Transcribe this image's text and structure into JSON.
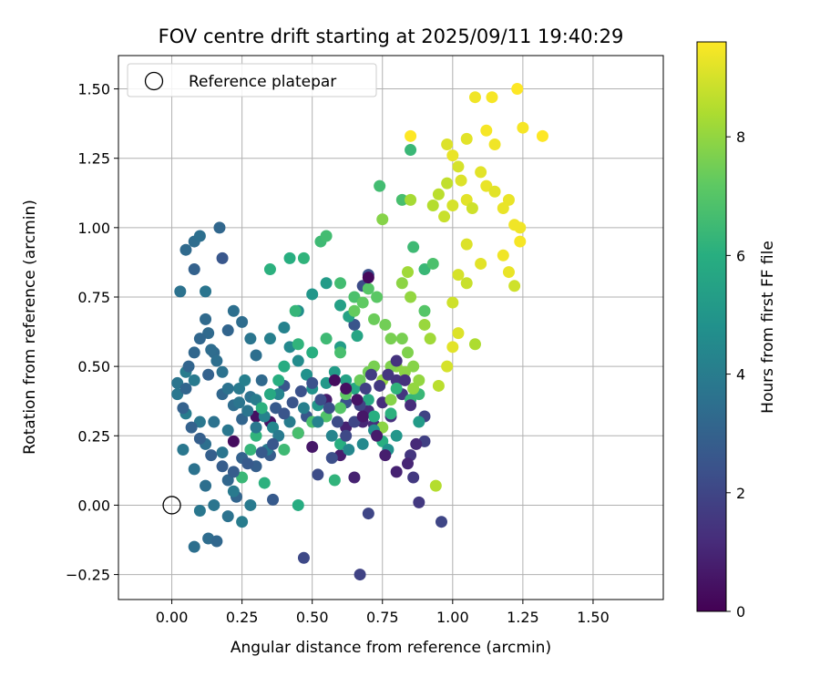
{
  "chart_data": {
    "type": "scatter",
    "title": "FOV centre drift starting at 2025/09/11 19:40:29",
    "xlabel": "Angular distance from reference (arcmin)",
    "ylabel": "Rotation from reference (arcmin)",
    "xlim": [
      -0.19,
      1.75
    ],
    "ylim": [
      -0.34,
      1.62
    ],
    "x_ticks": [
      0.0,
      0.25,
      0.5,
      0.75,
      1.0,
      1.25,
      1.5
    ],
    "x_tick_labels": [
      "0.00",
      "0.25",
      "0.50",
      "0.75",
      "1.00",
      "1.25",
      "1.50"
    ],
    "y_ticks": [
      -0.25,
      0.0,
      0.25,
      0.5,
      0.75,
      1.0,
      1.25,
      1.5
    ],
    "y_tick_labels": [
      "−0.25",
      "0.00",
      "0.25",
      "0.50",
      "0.75",
      "1.00",
      "1.25",
      "1.50"
    ],
    "grid": true,
    "legend": {
      "location": "upper-left",
      "entries": [
        "Reference platepar"
      ]
    },
    "reference": {
      "x": 0.0,
      "y": 0.0
    },
    "colorbar": {
      "label": "Hours from first FF file",
      "range": [
        0,
        9.6
      ],
      "ticks": [
        0,
        2,
        4,
        6,
        8
      ],
      "tick_labels": [
        "0",
        "2",
        "4",
        "6",
        "8"
      ],
      "colormap": "viridis"
    },
    "points": [
      [
        0.22,
        0.23,
        0.3
      ],
      [
        0.3,
        0.32,
        0.4
      ],
      [
        0.35,
        0.3,
        0.5
      ],
      [
        0.45,
        0.26,
        0.6
      ],
      [
        0.5,
        0.21,
        0.6
      ],
      [
        0.55,
        0.38,
        0.7
      ],
      [
        0.6,
        0.18,
        0.8
      ],
      [
        0.62,
        0.28,
        0.9
      ],
      [
        0.65,
        0.1,
        0.9
      ],
      [
        0.68,
        0.3,
        1.0
      ],
      [
        0.7,
        0.34,
        1.1
      ],
      [
        0.72,
        0.29,
        1.2
      ],
      [
        0.75,
        0.37,
        1.2
      ],
      [
        0.78,
        0.32,
        1.3
      ],
      [
        0.8,
        0.45,
        1.4
      ],
      [
        0.82,
        0.4,
        1.5
      ],
      [
        0.85,
        0.18,
        1.5
      ],
      [
        0.86,
        0.1,
        1.6
      ],
      [
        0.88,
        0.01,
        1.6
      ],
      [
        0.9,
        0.23,
        1.8
      ],
      [
        0.9,
        0.32,
        1.9
      ],
      [
        0.96,
        -0.06,
        2.0
      ],
      [
        0.7,
        -0.03,
        2.0
      ],
      [
        0.67,
        -0.25,
        1.9
      ],
      [
        0.47,
        -0.19,
        2.1
      ],
      [
        0.52,
        0.11,
        2.2
      ],
      [
        0.57,
        0.17,
        2.3
      ],
      [
        0.62,
        0.37,
        2.4
      ],
      [
        0.68,
        0.79,
        2.2
      ],
      [
        0.7,
        0.83,
        2.4
      ],
      [
        0.65,
        0.65,
        2.5
      ],
      [
        0.48,
        0.32,
        2.6
      ],
      [
        0.4,
        0.43,
        2.6
      ],
      [
        0.37,
        0.35,
        2.7
      ],
      [
        0.35,
        0.18,
        2.8
      ],
      [
        0.3,
        0.14,
        2.9
      ],
      [
        0.36,
        0.02,
        2.7
      ],
      [
        0.25,
        0.17,
        3.0
      ],
      [
        0.23,
        0.03,
        3.1
      ],
      [
        0.2,
        0.09,
        3.2
      ],
      [
        0.18,
        0.89,
        2.6
      ],
      [
        0.17,
        1.0,
        3.2
      ],
      [
        0.08,
        0.85,
        3.0
      ],
      [
        0.05,
        0.92,
        3.3
      ],
      [
        0.08,
        0.95,
        3.4
      ],
      [
        0.1,
        0.97,
        3.5
      ],
      [
        0.03,
        0.77,
        3.6
      ],
      [
        0.12,
        0.77,
        3.7
      ],
      [
        0.2,
        0.63,
        3.1
      ],
      [
        0.22,
        0.7,
        3.5
      ],
      [
        0.25,
        0.66,
        3.4
      ],
      [
        0.15,
        0.55,
        3.3
      ],
      [
        0.13,
        0.47,
        3.0
      ],
      [
        0.18,
        0.4,
        3.2
      ],
      [
        0.22,
        0.36,
        3.4
      ],
      [
        0.25,
        0.31,
        3.1
      ],
      [
        0.28,
        0.39,
        3.6
      ],
      [
        0.32,
        0.45,
        3.3
      ],
      [
        0.3,
        0.54,
        3.5
      ],
      [
        0.28,
        0.6,
        3.7
      ],
      [
        0.15,
        0.3,
        3.6
      ],
      [
        0.12,
        0.22,
        3.5
      ],
      [
        0.1,
        0.3,
        3.8
      ],
      [
        0.08,
        0.45,
        3.9
      ],
      [
        0.05,
        0.48,
        4.0
      ],
      [
        0.02,
        0.44,
        3.7
      ],
      [
        0.02,
        0.4,
        3.8
      ],
      [
        0.05,
        0.33,
        4.0
      ],
      [
        0.04,
        0.2,
        3.8
      ],
      [
        0.08,
        0.13,
        3.6
      ],
      [
        0.12,
        0.07,
        3.5
      ],
      [
        0.15,
        0.0,
        3.7
      ],
      [
        0.1,
        -0.02,
        3.8
      ],
      [
        0.13,
        -0.12,
        3.4
      ],
      [
        0.08,
        -0.15,
        3.5
      ],
      [
        0.16,
        -0.13,
        3.2
      ],
      [
        0.2,
        -0.04,
        3.6
      ],
      [
        0.22,
        0.05,
        3.9
      ],
      [
        0.25,
        -0.06,
        4.0
      ],
      [
        0.28,
        0.0,
        3.9
      ],
      [
        0.18,
        0.19,
        3.7
      ],
      [
        0.2,
        0.27,
        3.8
      ],
      [
        0.24,
        0.42,
        3.9
      ],
      [
        0.26,
        0.45,
        4.1
      ],
      [
        0.3,
        0.38,
        4.0
      ],
      [
        0.33,
        0.32,
        4.2
      ],
      [
        0.36,
        0.28,
        4.4
      ],
      [
        0.38,
        0.4,
        4.3
      ],
      [
        0.35,
        0.6,
        4.1
      ],
      [
        0.4,
        0.64,
        4.2
      ],
      [
        0.42,
        0.57,
        4.5
      ],
      [
        0.45,
        0.52,
        4.6
      ],
      [
        0.48,
        0.47,
        4.8
      ],
      [
        0.5,
        0.42,
        4.9
      ],
      [
        0.52,
        0.36,
        5.0
      ],
      [
        0.55,
        0.44,
        5.1
      ],
      [
        0.45,
        0.7,
        4.7
      ],
      [
        0.5,
        0.76,
        5.0
      ],
      [
        0.55,
        0.8,
        5.2
      ],
      [
        0.6,
        0.72,
        5.4
      ],
      [
        0.63,
        0.68,
        5.5
      ],
      [
        0.66,
        0.61,
        5.6
      ],
      [
        0.6,
        0.57,
        5.3
      ],
      [
        0.58,
        0.48,
        5.2
      ],
      [
        0.62,
        0.45,
        5.5
      ],
      [
        0.65,
        0.42,
        5.7
      ],
      [
        0.7,
        0.38,
        5.8
      ],
      [
        0.72,
        0.32,
        6.0
      ],
      [
        0.75,
        0.23,
        6.0
      ],
      [
        0.78,
        0.33,
        6.1
      ],
      [
        0.8,
        0.42,
        6.2
      ],
      [
        0.85,
        0.38,
        6.3
      ],
      [
        0.88,
        0.4,
        6.4
      ],
      [
        0.6,
        0.22,
        6.0
      ],
      [
        0.58,
        0.09,
        6.2
      ],
      [
        0.45,
        0.0,
        5.9
      ],
      [
        0.44,
        0.7,
        6.3
      ],
      [
        0.42,
        0.89,
        6.0
      ],
      [
        0.47,
        0.89,
        6.2
      ],
      [
        0.53,
        0.95,
        6.5
      ],
      [
        0.55,
        0.97,
        6.6
      ],
      [
        0.35,
        0.85,
        6.1
      ],
      [
        0.6,
        0.8,
        6.6
      ],
      [
        0.65,
        0.75,
        6.8
      ],
      [
        0.7,
        0.78,
        7.0
      ],
      [
        0.73,
        0.75,
        7.1
      ],
      [
        0.68,
        0.73,
        7.2
      ],
      [
        0.65,
        0.7,
        7.3
      ],
      [
        0.72,
        0.67,
        7.4
      ],
      [
        0.76,
        0.65,
        7.5
      ],
      [
        0.78,
        0.6,
        7.6
      ],
      [
        0.82,
        0.6,
        7.6
      ],
      [
        0.84,
        0.55,
        7.7
      ],
      [
        0.86,
        0.5,
        7.8
      ],
      [
        0.8,
        0.5,
        7.9
      ],
      [
        0.75,
        0.45,
        8.0
      ],
      [
        0.78,
        0.38,
        7.8
      ],
      [
        0.75,
        0.28,
        7.9
      ],
      [
        0.88,
        0.45,
        8.0
      ],
      [
        0.9,
        0.65,
        8.1
      ],
      [
        0.92,
        0.6,
        8.2
      ],
      [
        0.85,
        0.75,
        8.0
      ],
      [
        0.82,
        0.8,
        7.9
      ],
      [
        0.84,
        0.84,
        8.2
      ],
      [
        0.86,
        0.93,
        6.5
      ],
      [
        0.9,
        0.85,
        6.4
      ],
      [
        0.93,
        0.87,
        6.8
      ],
      [
        0.9,
        0.7,
        7.0
      ],
      [
        0.82,
        1.1,
        6.7
      ],
      [
        0.75,
        1.03,
        7.8
      ],
      [
        0.74,
        1.15,
        6.6
      ],
      [
        0.85,
        1.28,
        6.4
      ],
      [
        0.85,
        1.1,
        8.3
      ],
      [
        0.93,
        1.08,
        8.5
      ],
      [
        0.95,
        1.12,
        8.6
      ],
      [
        0.98,
        1.16,
        8.7
      ],
      [
        0.97,
        1.04,
        8.8
      ],
      [
        1.0,
        1.08,
        9.0
      ],
      [
        1.03,
        1.17,
        9.1
      ],
      [
        1.05,
        1.1,
        9.2
      ],
      [
        1.07,
        1.07,
        8.9
      ],
      [
        1.1,
        1.2,
        9.2
      ],
      [
        1.12,
        1.15,
        9.3
      ],
      [
        1.15,
        1.3,
        9.4
      ],
      [
        1.12,
        1.35,
        9.5
      ],
      [
        1.08,
        1.47,
        9.4
      ],
      [
        1.14,
        1.47,
        9.5
      ],
      [
        1.23,
        1.5,
        9.6
      ],
      [
        1.25,
        1.36,
        9.5
      ],
      [
        1.32,
        1.33,
        9.6
      ],
      [
        1.2,
        1.1,
        9.3
      ],
      [
        1.22,
        1.01,
        9.4
      ],
      [
        1.24,
        1.0,
        9.4
      ],
      [
        1.24,
        0.95,
        9.5
      ],
      [
        1.18,
        1.07,
        9.3
      ],
      [
        1.15,
        1.13,
        9.2
      ],
      [
        1.18,
        0.9,
        9.4
      ],
      [
        1.2,
        0.84,
        9.3
      ],
      [
        1.22,
        0.79,
        8.9
      ],
      [
        1.1,
        0.87,
        9.2
      ],
      [
        1.05,
        0.94,
        9.1
      ],
      [
        1.02,
        0.83,
        9.0
      ],
      [
        1.0,
        0.73,
        8.9
      ],
      [
        1.05,
        0.8,
        8.8
      ],
      [
        1.02,
        0.62,
        9.1
      ],
      [
        1.0,
        0.57,
        9.2
      ],
      [
        0.98,
        0.5,
        9.0
      ],
      [
        0.95,
        0.43,
        8.6
      ],
      [
        0.94,
        0.07,
        8.5
      ],
      [
        1.08,
        0.58,
        8.4
      ],
      [
        1.0,
        1.26,
        9.3
      ],
      [
        0.98,
        1.3,
        9.1
      ],
      [
        1.05,
        1.32,
        9.2
      ],
      [
        1.02,
        1.22,
        9.0
      ],
      [
        0.85,
        1.33,
        9.6
      ],
      [
        0.6,
        0.55,
        6.7
      ],
      [
        0.55,
        0.6,
        6.5
      ],
      [
        0.5,
        0.55,
        6.0
      ],
      [
        0.45,
        0.58,
        6.2
      ],
      [
        0.4,
        0.5,
        5.9
      ],
      [
        0.38,
        0.45,
        6.0
      ],
      [
        0.35,
        0.4,
        5.8
      ],
      [
        0.32,
        0.35,
        6.1
      ],
      [
        0.3,
        0.25,
        6.2
      ],
      [
        0.28,
        0.2,
        6.3
      ],
      [
        0.25,
        0.1,
        6.4
      ],
      [
        0.33,
        0.08,
        6.1
      ],
      [
        0.4,
        0.2,
        6.5
      ],
      [
        0.45,
        0.26,
        6.7
      ],
      [
        0.5,
        0.3,
        6.8
      ],
      [
        0.55,
        0.32,
        6.9
      ],
      [
        0.6,
        0.35,
        7.0
      ],
      [
        0.62,
        0.4,
        7.2
      ],
      [
        0.67,
        0.45,
        7.4
      ],
      [
        0.7,
        0.48,
        7.5
      ],
      [
        0.72,
        0.5,
        7.6
      ],
      [
        0.78,
        0.5,
        7.7
      ],
      [
        0.83,
        0.48,
        7.9
      ],
      [
        0.86,
        0.42,
        8.0
      ],
      [
        0.88,
        0.3,
        5.2
      ],
      [
        0.8,
        0.25,
        5.0
      ],
      [
        0.77,
        0.2,
        4.8
      ],
      [
        0.72,
        0.27,
        4.7
      ],
      [
        0.68,
        0.22,
        4.5
      ],
      [
        0.63,
        0.2,
        4.4
      ],
      [
        0.57,
        0.25,
        4.3
      ],
      [
        0.52,
        0.3,
        4.2
      ],
      [
        0.47,
        0.35,
        4.1
      ],
      [
        0.42,
        0.3,
        4.0
      ],
      [
        0.38,
        0.25,
        3.9
      ],
      [
        0.34,
        0.2,
        3.9
      ],
      [
        0.3,
        0.28,
        3.8
      ],
      [
        0.27,
        0.34,
        3.7
      ],
      [
        0.24,
        0.37,
        3.7
      ],
      [
        0.2,
        0.42,
        3.6
      ],
      [
        0.18,
        0.48,
        3.6
      ],
      [
        0.16,
        0.52,
        3.5
      ],
      [
        0.14,
        0.56,
        3.4
      ],
      [
        0.13,
        0.62,
        3.3
      ],
      [
        0.12,
        0.67,
        3.3
      ],
      [
        0.1,
        0.6,
        3.2
      ],
      [
        0.08,
        0.55,
        3.2
      ],
      [
        0.06,
        0.5,
        3.1
      ],
      [
        0.05,
        0.42,
        3.1
      ],
      [
        0.04,
        0.35,
        3.0
      ],
      [
        0.07,
        0.28,
        3.0
      ],
      [
        0.1,
        0.24,
        2.9
      ],
      [
        0.14,
        0.18,
        2.9
      ],
      [
        0.18,
        0.14,
        2.8
      ],
      [
        0.22,
        0.12,
        2.8
      ],
      [
        0.27,
        0.15,
        2.7
      ],
      [
        0.32,
        0.19,
        2.7
      ],
      [
        0.36,
        0.22,
        2.6
      ],
      [
        0.4,
        0.33,
        2.5
      ],
      [
        0.43,
        0.37,
        2.5
      ],
      [
        0.46,
        0.41,
        2.4
      ],
      [
        0.5,
        0.44,
        2.4
      ],
      [
        0.53,
        0.38,
        2.3
      ],
      [
        0.56,
        0.35,
        2.3
      ],
      [
        0.59,
        0.3,
        2.2
      ],
      [
        0.62,
        0.25,
        2.1
      ],
      [
        0.65,
        0.3,
        2.0
      ],
      [
        0.67,
        0.36,
        1.9
      ],
      [
        0.69,
        0.42,
        1.8
      ],
      [
        0.71,
        0.47,
        1.7
      ],
      [
        0.74,
        0.43,
        1.6
      ],
      [
        0.77,
        0.47,
        1.5
      ],
      [
        0.8,
        0.52,
        1.4
      ],
      [
        0.83,
        0.45,
        1.3
      ],
      [
        0.85,
        0.36,
        1.2
      ],
      [
        0.87,
        0.22,
        1.1
      ],
      [
        0.84,
        0.15,
        1.0
      ],
      [
        0.8,
        0.12,
        0.9
      ],
      [
        0.76,
        0.18,
        0.8
      ],
      [
        0.73,
        0.25,
        0.7
      ],
      [
        0.68,
        0.32,
        0.6
      ],
      [
        0.66,
        0.38,
        0.5
      ],
      [
        0.62,
        0.42,
        0.4
      ],
      [
        0.58,
        0.45,
        0.3
      ],
      [
        0.7,
        0.82,
        0.2
      ]
    ]
  }
}
